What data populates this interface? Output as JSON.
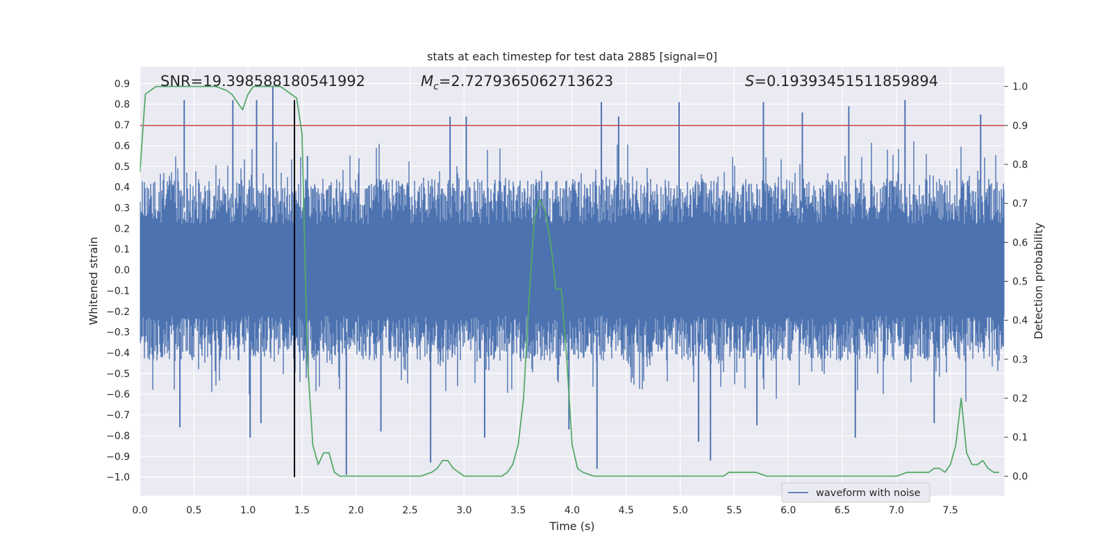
{
  "chart_data": {
    "type": "line",
    "title": "stats at each timestep for test data 2885 [signal=0]",
    "xlabel": "Time (s)",
    "ylabel": "Whitened strain",
    "y2label": "Detection probability",
    "xlim": [
      0.0,
      8.0
    ],
    "ylim": [
      -1.09,
      0.98
    ],
    "y2lim": [
      -0.05,
      1.05
    ],
    "xticks": [
      0.0,
      0.5,
      1.0,
      1.5,
      2.0,
      2.5,
      3.0,
      3.5,
      4.0,
      4.5,
      5.0,
      5.5,
      6.0,
      6.5,
      7.0,
      7.5
    ],
    "yticks": [
      0.9,
      0.8,
      0.7,
      0.6,
      0.5,
      0.4,
      0.3,
      0.2,
      0.1,
      0.0,
      -0.1,
      -0.2,
      -0.3,
      -0.4,
      -0.5,
      -0.6,
      -0.7,
      -0.8,
      -0.9,
      -1.0
    ],
    "y2ticks": [
      1.0,
      0.9,
      0.8,
      0.7,
      0.6,
      0.5,
      0.4,
      0.3,
      0.2,
      0.1,
      0.0
    ],
    "annotations": {
      "snr": "SNR=19.398588180541992",
      "mc_symbol": "M",
      "mc_sub": "c",
      "mc_value": "=2.7279365062713623",
      "s_symbol": "S",
      "s_value": "=0.19393451511859894"
    },
    "threshold": {
      "value": 0.9,
      "axis": "right",
      "color": "#C44E52"
    },
    "marker_time": 1.43,
    "legend": {
      "label": "waveform with noise",
      "placement": "lower-right"
    },
    "series": [
      {
        "name": "waveform with noise",
        "axis": "left",
        "color": "#4C72B0",
        "noise_description": "whitened strain noise, roughly -0.45 to 0.45 with spikes",
        "peaks": [
          {
            "x": 0.41,
            "y": 0.82
          },
          {
            "x": 0.86,
            "y": 0.82
          },
          {
            "x": 1.08,
            "y": 0.82
          },
          {
            "x": 1.23,
            "y": 0.89
          },
          {
            "x": 1.55,
            "y": 0.55
          },
          {
            "x": 2.87,
            "y": 0.74
          },
          {
            "x": 3.02,
            "y": 0.74
          },
          {
            "x": 4.27,
            "y": 0.81
          },
          {
            "x": 4.43,
            "y": 0.74
          },
          {
            "x": 4.99,
            "y": 0.81
          },
          {
            "x": 5.77,
            "y": 0.81
          },
          {
            "x": 6.13,
            "y": 0.76
          },
          {
            "x": 6.56,
            "y": 0.79
          },
          {
            "x": 7.08,
            "y": 0.82
          },
          {
            "x": 7.78,
            "y": 0.75
          }
        ],
        "troughs": [
          {
            "x": 0.37,
            "y": -0.76
          },
          {
            "x": 1.02,
            "y": -0.81
          },
          {
            "x": 1.12,
            "y": -0.74
          },
          {
            "x": 1.91,
            "y": -0.99
          },
          {
            "x": 2.23,
            "y": -0.78
          },
          {
            "x": 2.69,
            "y": -0.93
          },
          {
            "x": 3.19,
            "y": -0.81
          },
          {
            "x": 3.97,
            "y": -0.77
          },
          {
            "x": 4.23,
            "y": -0.96
          },
          {
            "x": 5.17,
            "y": -0.83
          },
          {
            "x": 5.28,
            "y": -0.92
          },
          {
            "x": 5.71,
            "y": -0.75
          },
          {
            "x": 6.62,
            "y": -0.81
          },
          {
            "x": 7.35,
            "y": -0.74
          }
        ]
      },
      {
        "name": "detection probability",
        "axis": "right",
        "color": "#55A868",
        "x": [
          0.0,
          0.05,
          0.1,
          0.15,
          0.2,
          0.3,
          0.4,
          0.5,
          0.6,
          0.7,
          0.8,
          0.85,
          0.9,
          0.95,
          1.0,
          1.05,
          1.1,
          1.2,
          1.3,
          1.35,
          1.4,
          1.45,
          1.5,
          1.55,
          1.6,
          1.65,
          1.7,
          1.75,
          1.8,
          1.85,
          1.9,
          2.0,
          2.1,
          2.2,
          2.3,
          2.4,
          2.5,
          2.6,
          2.7,
          2.75,
          2.8,
          2.85,
          2.9,
          2.95,
          3.0,
          3.1,
          3.2,
          3.3,
          3.35,
          3.4,
          3.45,
          3.5,
          3.55,
          3.6,
          3.65,
          3.7,
          3.75,
          3.8,
          3.85,
          3.9,
          3.95,
          4.0,
          4.05,
          4.1,
          4.2,
          4.3,
          4.4,
          4.5,
          4.6,
          4.8,
          5.0,
          5.2,
          5.3,
          5.4,
          5.45,
          5.5,
          5.6,
          5.65,
          5.7,
          5.8,
          5.9,
          6.0,
          6.2,
          6.4,
          6.6,
          6.8,
          7.0,
          7.1,
          7.15,
          7.2,
          7.25,
          7.3,
          7.35,
          7.4,
          7.45,
          7.5,
          7.55,
          7.6,
          7.65,
          7.7,
          7.75,
          7.8,
          7.85,
          7.9,
          7.95
        ],
        "y": [
          0.78,
          0.98,
          0.99,
          1.0,
          1.0,
          1.0,
          1.0,
          1.0,
          1.0,
          1.0,
          0.99,
          0.98,
          0.96,
          0.94,
          0.98,
          1.0,
          1.0,
          1.0,
          1.0,
          0.99,
          0.98,
          0.97,
          0.88,
          0.3,
          0.08,
          0.03,
          0.06,
          0.06,
          0.01,
          0.0,
          0.0,
          0.0,
          0.0,
          0.0,
          0.0,
          0.0,
          0.0,
          0.0,
          0.01,
          0.02,
          0.04,
          0.04,
          0.02,
          0.01,
          0.0,
          0.0,
          0.0,
          0.0,
          0.0,
          0.01,
          0.03,
          0.08,
          0.2,
          0.45,
          0.66,
          0.71,
          0.68,
          0.6,
          0.48,
          0.48,
          0.3,
          0.08,
          0.02,
          0.01,
          0.0,
          0.0,
          0.0,
          0.0,
          0.0,
          0.0,
          0.0,
          0.0,
          0.0,
          0.0,
          0.01,
          0.01,
          0.01,
          0.01,
          0.01,
          0.0,
          0.0,
          0.0,
          0.0,
          0.0,
          0.0,
          0.0,
          0.0,
          0.01,
          0.01,
          0.01,
          0.01,
          0.01,
          0.02,
          0.02,
          0.01,
          0.03,
          0.08,
          0.2,
          0.06,
          0.03,
          0.03,
          0.04,
          0.02,
          0.01,
          0.01
        ]
      }
    ]
  }
}
